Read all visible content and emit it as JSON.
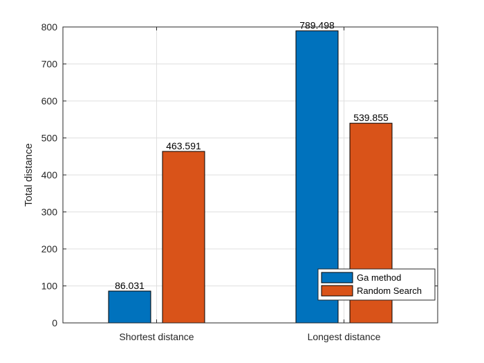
{
  "chart_data": {
    "type": "bar",
    "title": "",
    "xlabel": "",
    "ylabel": "Total distance",
    "categories": [
      "Shortest distance",
      "Longest distance"
    ],
    "series": [
      {
        "name": "Ga method",
        "values": [
          86.031,
          789.498
        ],
        "color": "#0072BD"
      },
      {
        "name": "Random Search",
        "values": [
          463.591,
          539.855
        ],
        "color": "#D95319"
      }
    ],
    "data_labels": [
      [
        "86.031",
        "789.498"
      ],
      [
        "463.591",
        "539.855"
      ]
    ],
    "ylim": [
      0,
      800
    ],
    "yticks": [
      "0",
      "100",
      "200",
      "300",
      "400",
      "500",
      "600",
      "700",
      "800"
    ],
    "grid": true,
    "legend_position": "bottom-right"
  }
}
